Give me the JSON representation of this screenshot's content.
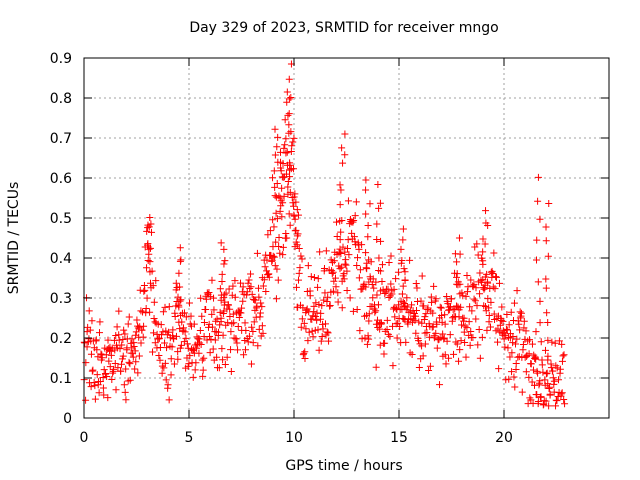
{
  "chart_data": {
    "type": "scatter",
    "title": "Day 329 of 2023, SRMTID for receiver mngo",
    "xlabel": "GPS time / hours",
    "ylabel": "SRMTID / TECUs",
    "xlim": [
      0,
      25
    ],
    "ylim": [
      0,
      0.9
    ],
    "xticks": [
      0,
      5,
      10,
      15,
      20
    ],
    "xtick_labels": [
      "0",
      "5",
      "10",
      "15",
      "20"
    ],
    "yticks": [
      0,
      0.1,
      0.2,
      0.3,
      0.4,
      0.5,
      0.6,
      0.7,
      0.8,
      0.9
    ],
    "ytick_labels": [
      "0",
      "0.1",
      "0.2",
      "0.3",
      "0.4",
      "0.5",
      "0.6",
      "0.7",
      "0.8",
      "0.9"
    ],
    "grid": true,
    "marker": "+",
    "series_color": "#ff0000",
    "trend": [
      [
        0.0,
        0.2
      ],
      [
        0.3,
        0.17
      ],
      [
        0.7,
        0.12
      ],
      [
        1.0,
        0.1
      ],
      [
        1.3,
        0.18
      ],
      [
        1.7,
        0.17
      ],
      [
        2.0,
        0.12
      ],
      [
        2.3,
        0.2
      ],
      [
        2.7,
        0.22
      ],
      [
        3.0,
        0.38
      ],
      [
        3.3,
        0.3
      ],
      [
        3.6,
        0.2
      ],
      [
        4.0,
        0.15
      ],
      [
        4.4,
        0.25
      ],
      [
        4.8,
        0.2
      ],
      [
        5.2,
        0.17
      ],
      [
        5.6,
        0.22
      ],
      [
        6.0,
        0.27
      ],
      [
        6.4,
        0.18
      ],
      [
        6.7,
        0.25
      ],
      [
        7.0,
        0.22
      ],
      [
        7.5,
        0.27
      ],
      [
        8.0,
        0.25
      ],
      [
        8.5,
        0.3
      ],
      [
        9.0,
        0.45
      ],
      [
        9.3,
        0.5
      ],
      [
        9.6,
        0.55
      ],
      [
        9.9,
        0.6
      ],
      [
        10.2,
        0.35
      ],
      [
        10.5,
        0.22
      ],
      [
        10.8,
        0.28
      ],
      [
        11.2,
        0.27
      ],
      [
        11.6,
        0.3
      ],
      [
        12.0,
        0.35
      ],
      [
        12.4,
        0.42
      ],
      [
        12.8,
        0.45
      ],
      [
        13.1,
        0.35
      ],
      [
        13.5,
        0.3
      ],
      [
        14.0,
        0.28
      ],
      [
        14.5,
        0.3
      ],
      [
        15.0,
        0.25
      ],
      [
        15.5,
        0.27
      ],
      [
        16.0,
        0.22
      ],
      [
        16.5,
        0.23
      ],
      [
        17.0,
        0.2
      ],
      [
        17.5,
        0.25
      ],
      [
        18.0,
        0.25
      ],
      [
        18.5,
        0.28
      ],
      [
        19.0,
        0.32
      ],
      [
        19.5,
        0.3
      ],
      [
        20.0,
        0.2
      ],
      [
        20.4,
        0.18
      ],
      [
        20.8,
        0.2
      ],
      [
        21.2,
        0.12
      ],
      [
        21.6,
        0.1
      ],
      [
        22.0,
        0.1
      ],
      [
        22.4,
        0.09
      ],
      [
        22.8,
        0.08
      ]
    ],
    "spikes": [
      [
        3.1,
        0.5
      ],
      [
        4.5,
        0.42
      ],
      [
        6.6,
        0.44
      ],
      [
        9.1,
        0.73
      ],
      [
        9.4,
        0.68
      ],
      [
        9.7,
        0.82
      ],
      [
        9.85,
        0.87
      ],
      [
        10.1,
        0.52
      ],
      [
        12.3,
        0.72
      ],
      [
        13.5,
        0.6
      ],
      [
        14.0,
        0.57
      ],
      [
        15.2,
        0.46
      ],
      [
        17.8,
        0.44
      ],
      [
        19.1,
        0.51
      ],
      [
        21.6,
        0.59
      ],
      [
        22.1,
        0.53
      ]
    ],
    "x_start": 0,
    "x_end": 22.9,
    "x_step": 0.0225,
    "scatter_spread": 0.07,
    "seed": 329
  }
}
